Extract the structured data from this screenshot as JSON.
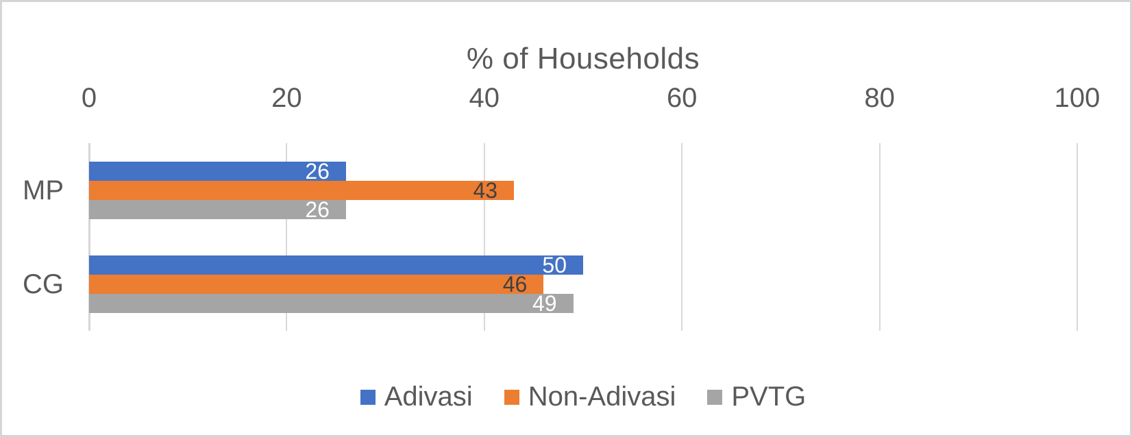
{
  "chart_data": {
    "type": "bar",
    "orientation": "horizontal",
    "title": "% of Households",
    "categories": [
      "MP",
      "CG"
    ],
    "series": [
      {
        "name": "Adivasi",
        "color": "#4472C4",
        "label_color": "#FFFFFF",
        "values": [
          26,
          50
        ]
      },
      {
        "name": "Non-Adivasi",
        "color": "#ED7D31",
        "label_color": "#404040",
        "values": [
          43,
          46
        ]
      },
      {
        "name": "PVTG",
        "color": "#A5A5A5",
        "label_color": "#FFFFFF",
        "values": [
          26,
          49
        ]
      }
    ],
    "xlim": [
      0,
      100
    ],
    "x_ticks": [
      0,
      20,
      40,
      60,
      80,
      100
    ],
    "grid": true,
    "legend_position": "bottom",
    "data_labels": "inside-end"
  },
  "colors": {
    "text": "#595959",
    "gridline": "#D9D9D9",
    "frame_border": "#D5D5D5",
    "background": "#FFFFFF"
  }
}
